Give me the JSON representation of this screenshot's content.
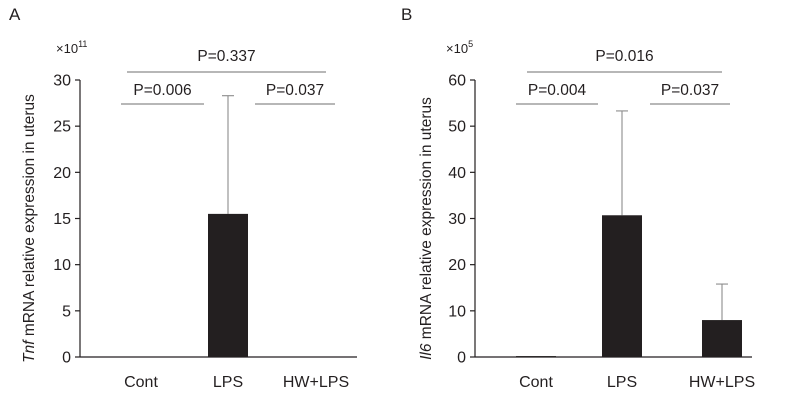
{
  "chart_data": [
    {
      "type": "bar",
      "panel_label": "A",
      "multiplier_base": "×10",
      "multiplier_exp": "11",
      "ylabel_gene": "Tnf",
      "ylabel_rest": " mRNA relative expression in uterus",
      "categories": [
        "Cont",
        "LPS",
        "HW+LPS"
      ],
      "values": [
        0,
        15.5,
        0
      ],
      "error_upper": [
        0,
        28.3,
        0
      ],
      "ylim": [
        0,
        30
      ],
      "yticks": [
        "0",
        "5",
        "10",
        "15",
        "20",
        "25",
        "30"
      ],
      "comparisons": [
        {
          "label": "P=0.337",
          "from": "Cont",
          "to": "HW+LPS"
        },
        {
          "label": "P=0.006",
          "from": "Cont",
          "to": "LPS"
        },
        {
          "label": "P=0.037",
          "from": "LPS",
          "to": "HW+LPS"
        }
      ],
      "bar_color": "#231f20"
    },
    {
      "type": "bar",
      "panel_label": "B",
      "multiplier_base": "×10",
      "multiplier_exp": "5",
      "ylabel_gene": "Il6",
      "ylabel_rest": " mRNA relative expression in uterus",
      "categories": [
        "Cont",
        "LPS",
        "HW+LPS"
      ],
      "values": [
        0.2,
        30.7,
        8.0
      ],
      "error_upper": [
        0.2,
        53.3,
        15.8
      ],
      "ylim": [
        0,
        60
      ],
      "yticks": [
        "0",
        "10",
        "20",
        "30",
        "40",
        "50",
        "60"
      ],
      "comparisons": [
        {
          "label": "P=0.016",
          "from": "Cont",
          "to": "HW+LPS"
        },
        {
          "label": "P=0.004",
          "from": "Cont",
          "to": "LPS"
        },
        {
          "label": "P=0.037",
          "from": "LPS",
          "to": "HW+LPS"
        }
      ],
      "bar_color": "#231f20"
    }
  ]
}
